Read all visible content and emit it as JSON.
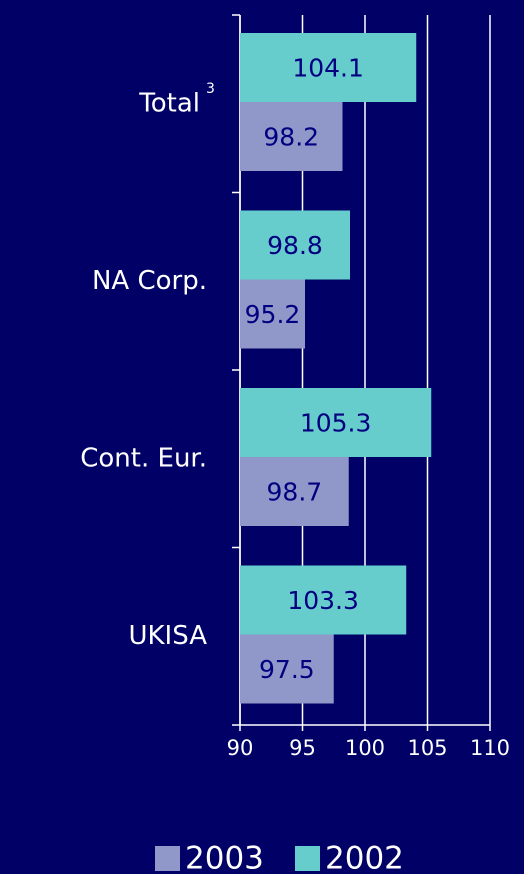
{
  "chart_data": {
    "type": "bar",
    "orientation": "horizontal",
    "categories": [
      "Total",
      "NA Corp.",
      "Cont. Eur.",
      "UKISA"
    ],
    "category_superscripts": [
      "3"
    ],
    "series": [
      {
        "name": "2003",
        "color": "#8f98c8",
        "values": [
          98.2,
          95.2,
          98.7,
          97.5
        ]
      },
      {
        "name": "2002",
        "color": "#66cccc",
        "values": [
          104.1,
          98.8,
          105.3,
          103.3
        ]
      }
    ],
    "xlim": [
      90,
      110
    ],
    "xticks": [
      90,
      95,
      100,
      105,
      110
    ],
    "grid": true,
    "legend": "bottom"
  }
}
